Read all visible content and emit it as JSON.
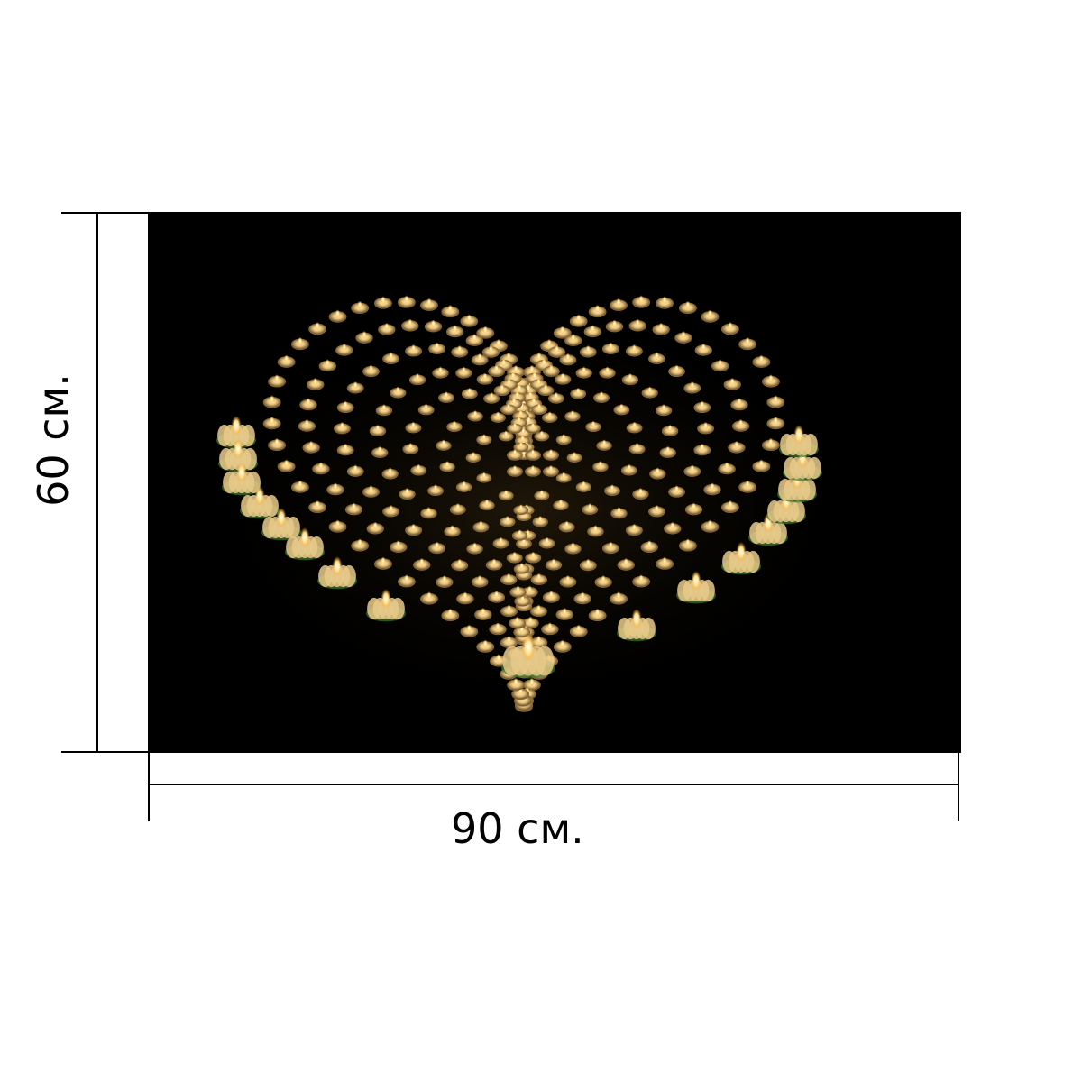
{
  "dimensions": {
    "width_label": "90 см.",
    "height_label": "60 см."
  },
  "photo": {
    "subject": "heart-of-tealight-candles",
    "background_color": "#000000",
    "candle_glow_color": "#ffd98a",
    "candle_rim_color": "#8a6a3a",
    "lotus_petal_color": "#e8c98a",
    "lotus_leaf_color": "#3f7a2e"
  },
  "frame": {
    "line_color": "#000000",
    "page_background": "#ffffff"
  }
}
